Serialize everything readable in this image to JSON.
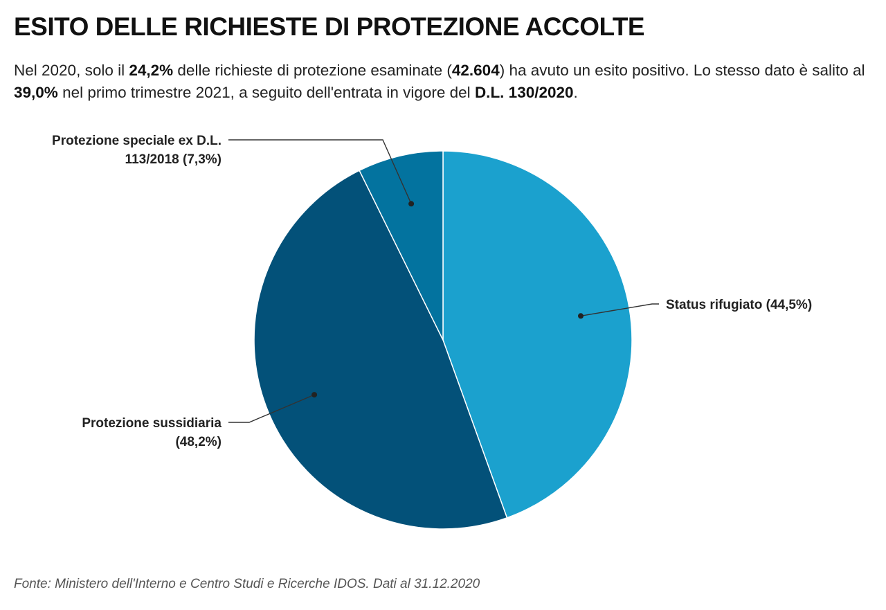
{
  "header": {
    "title": "ESITO DELLE RICHIESTE DI PROTEZIONE ACCOLTE",
    "subtitle_parts": [
      {
        "text": "Nel 2020, solo il ",
        "bold": false
      },
      {
        "text": "24,2%",
        "bold": true
      },
      {
        "text": " delle richieste di protezione esaminate (",
        "bold": false
      },
      {
        "text": "42.604",
        "bold": true
      },
      {
        "text": ") ha avuto un esito positivo. Lo stesso dato è salito al ",
        "bold": false
      },
      {
        "text": "39,0%",
        "bold": true
      },
      {
        "text": " nel primo trimestre 2021, a seguito dell'entrata in vigore del ",
        "bold": false
      },
      {
        "text": "D.L. 130/2020",
        "bold": true
      },
      {
        "text": ".",
        "bold": false
      }
    ]
  },
  "chart_data": {
    "type": "pie",
    "title": "",
    "slices": [
      {
        "label_lines": [
          "Status rifugiato (44,5%)"
        ],
        "value": 44.5,
        "color": "#1ba1ce"
      },
      {
        "label_lines": [
          "Protezione sussidiaria",
          "(48,2%)"
        ],
        "value": 48.2,
        "color": "#035179"
      },
      {
        "label_lines": [
          "Protezione speciale ex D.L.",
          "113/2018 (7,3%)"
        ],
        "value": 7.3,
        "color": "#03739f"
      }
    ],
    "start_angle": "12 o'clock",
    "direction": "clockwise"
  },
  "footer": {
    "source": "Fonte: Ministero dell'Interno e Centro Studi e Ricerche IDOS. Dati al 31.12.2020"
  }
}
